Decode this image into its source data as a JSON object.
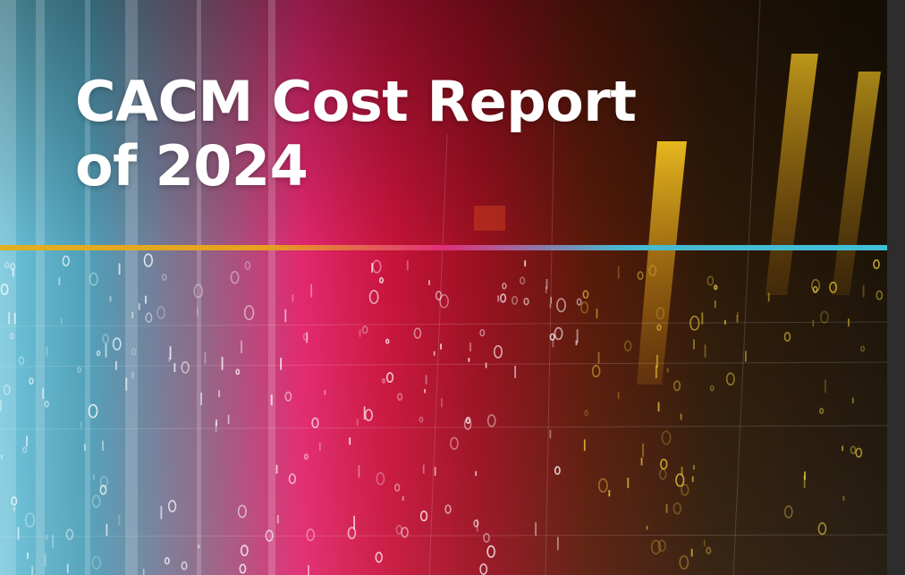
{
  "title_lines": [
    "CACM Cost Report",
    "of 2024"
  ]
}
